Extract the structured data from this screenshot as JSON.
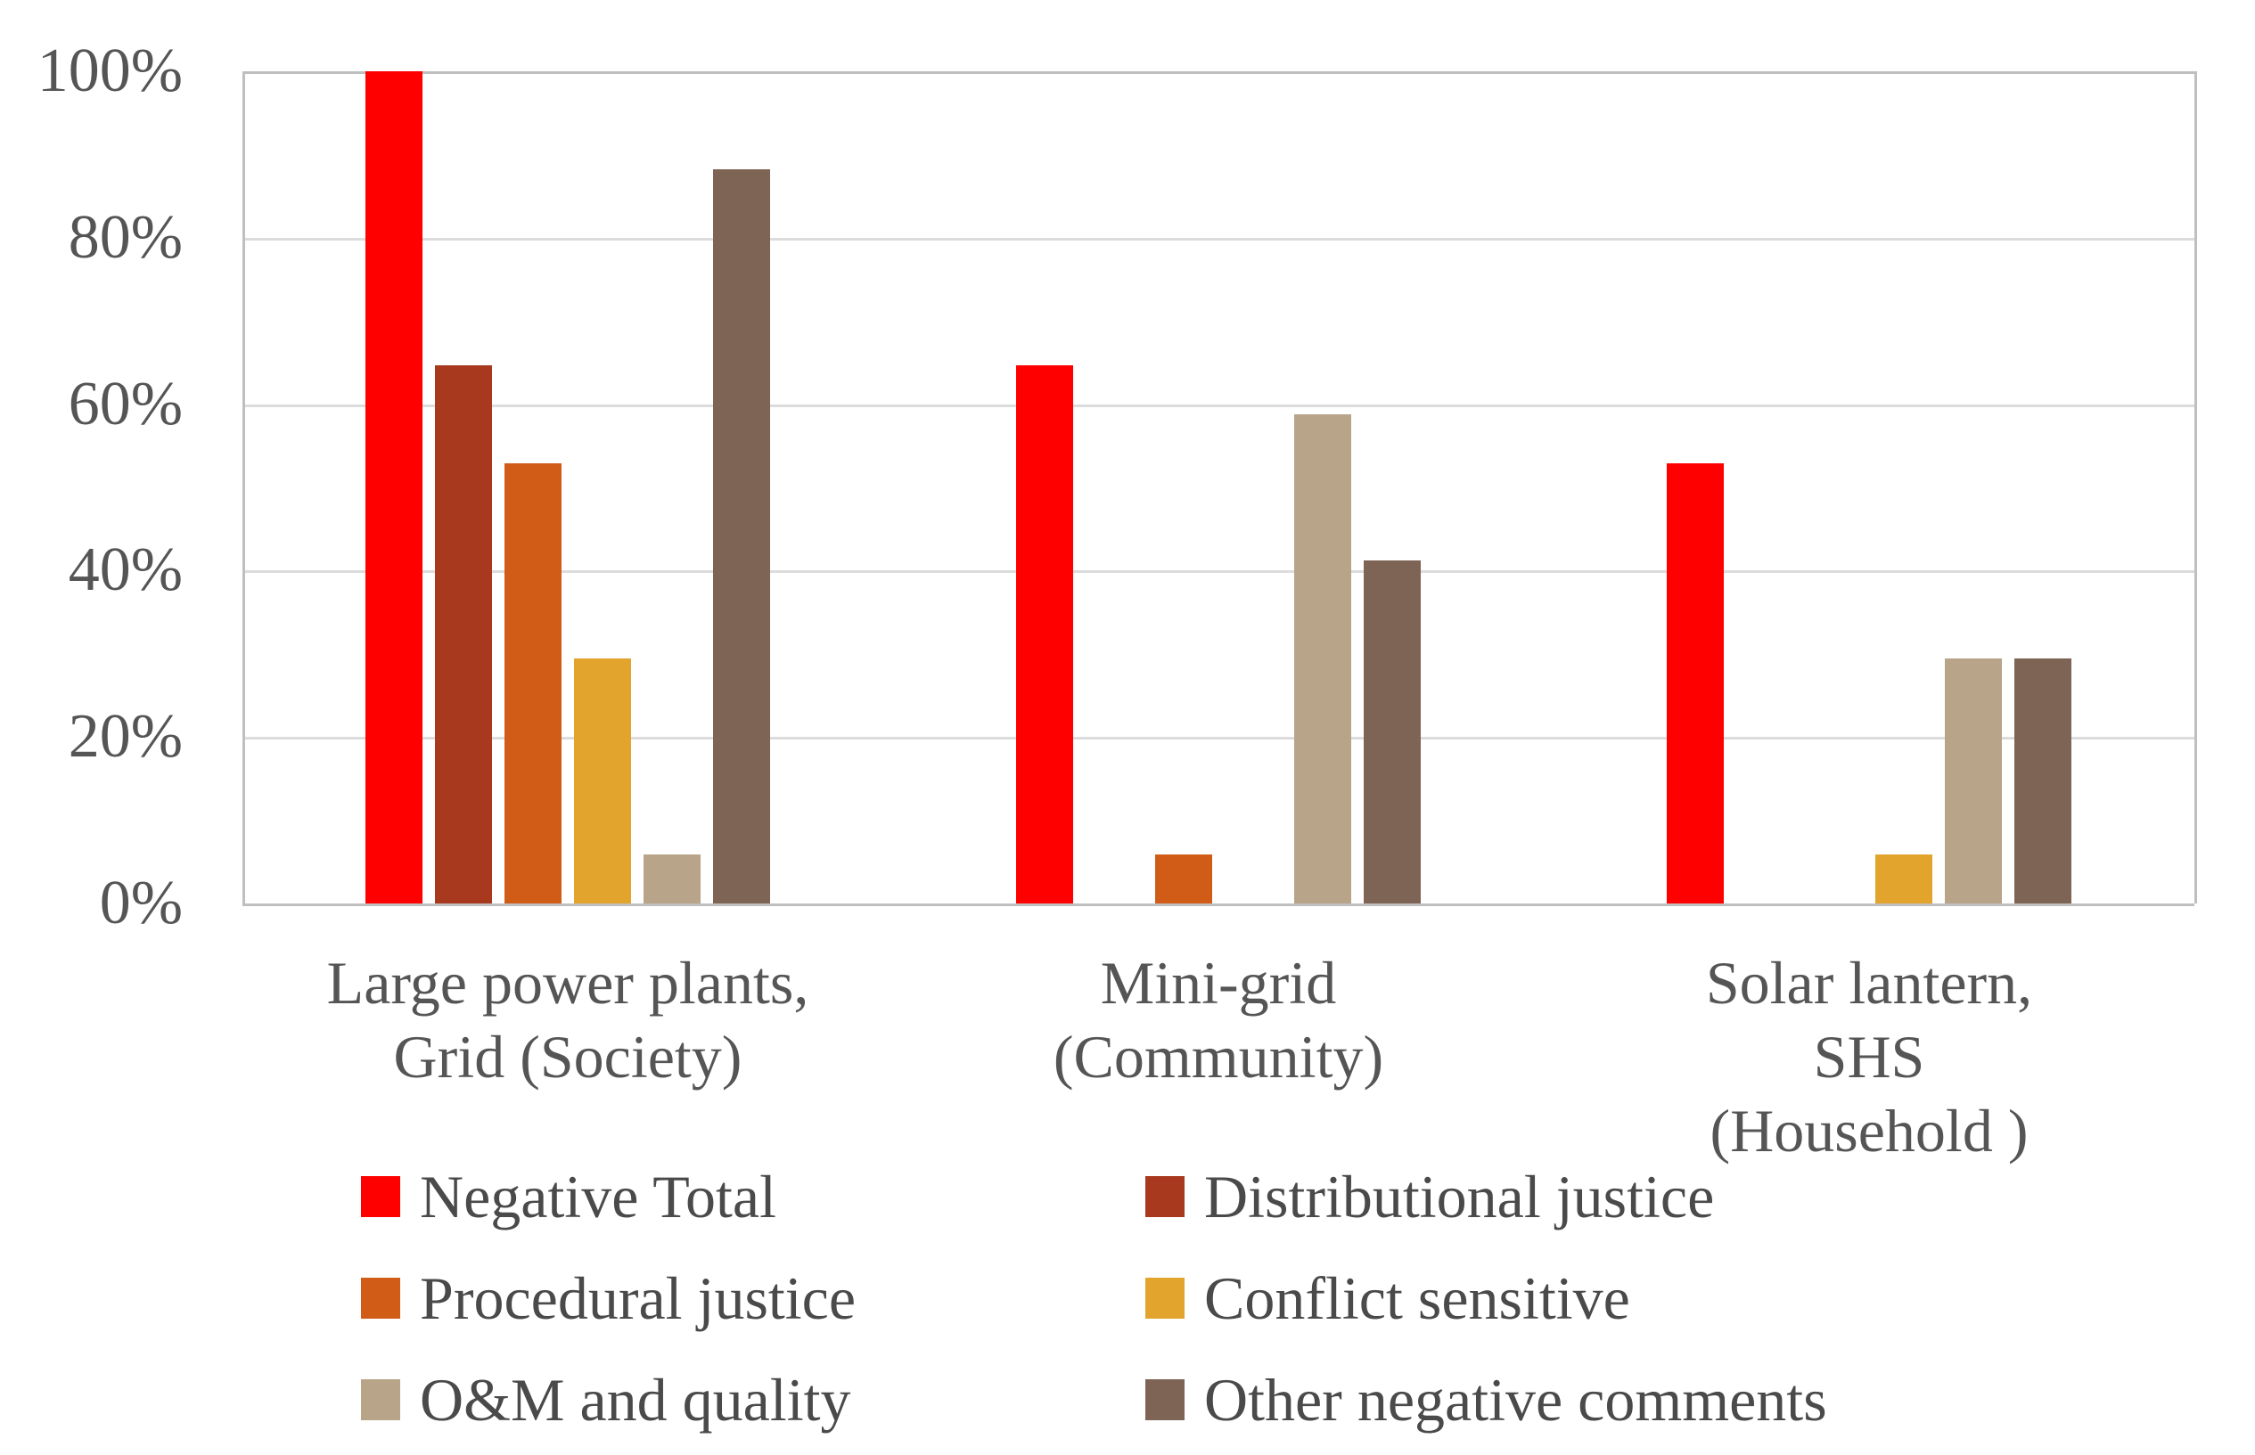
{
  "chart_data": {
    "type": "bar",
    "title": "",
    "categories": [
      {
        "label": "Large power plants,\nGrid (Society)"
      },
      {
        "label": "Mini-grid\n(Community)"
      },
      {
        "label": "Solar lantern, SHS\n(Household )"
      }
    ],
    "series": [
      {
        "name": "Negative Total",
        "color": "#ff0000",
        "values": [
          100,
          64.7,
          52.9
        ]
      },
      {
        "name": "Distributional justice",
        "color": "#a8391e",
        "values": [
          64.7,
          0,
          0
        ]
      },
      {
        "name": "Procedural justice",
        "color": "#d05c18",
        "values": [
          52.9,
          5.9,
          0
        ]
      },
      {
        "name": "Conflict sensitive",
        "color": "#e3a42d",
        "values": [
          29.4,
          0,
          5.9
        ]
      },
      {
        "name": "O&M and quality",
        "color": "#b7a489",
        "values": [
          5.9,
          58.8,
          29.4
        ]
      },
      {
        "name": "Other negative comments",
        "color": "#7e6455",
        "values": [
          88.2,
          41.2,
          29.4
        ]
      }
    ],
    "y_axis": {
      "min": 0,
      "max": 100,
      "tick_step": 20,
      "ticks": [
        "0%",
        "20%",
        "40%",
        "60%",
        "80%",
        "100%"
      ],
      "grid": true
    },
    "x_axis_label": "",
    "y_axis_label": "",
    "legend": {
      "position": "bottom",
      "columns": 2
    },
    "colors": {
      "grid_line": "#dcdcdc",
      "plot_border": "#bfbfbf",
      "tick_text": "#555555",
      "legend_text": "#4a4a4a",
      "background": "#ffffff"
    }
  }
}
